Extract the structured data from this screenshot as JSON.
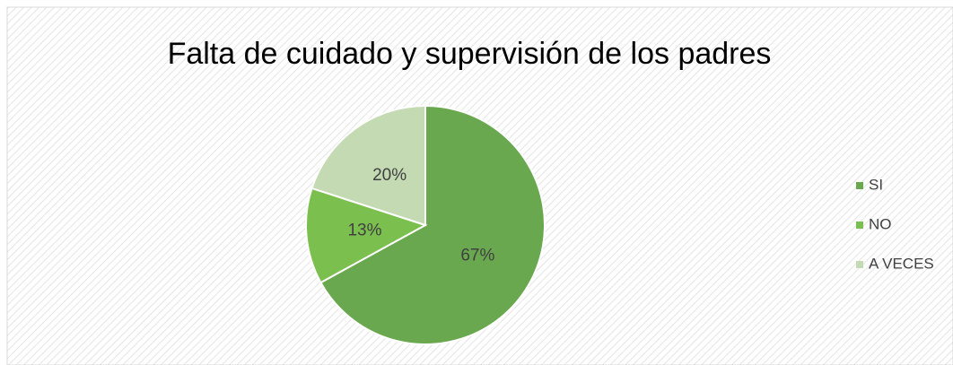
{
  "chart_data": {
    "type": "pie",
    "title": "Falta de cuidado y supervisión de los padres",
    "categories": [
      "SI",
      "NO",
      "A VECES"
    ],
    "values": [
      67,
      13,
      20
    ],
    "value_labels": [
      "67%",
      "13%",
      "20%"
    ],
    "colors": [
      "#6aa84f",
      "#7bbf4e",
      "#c3dab3"
    ],
    "legend": "right"
  }
}
